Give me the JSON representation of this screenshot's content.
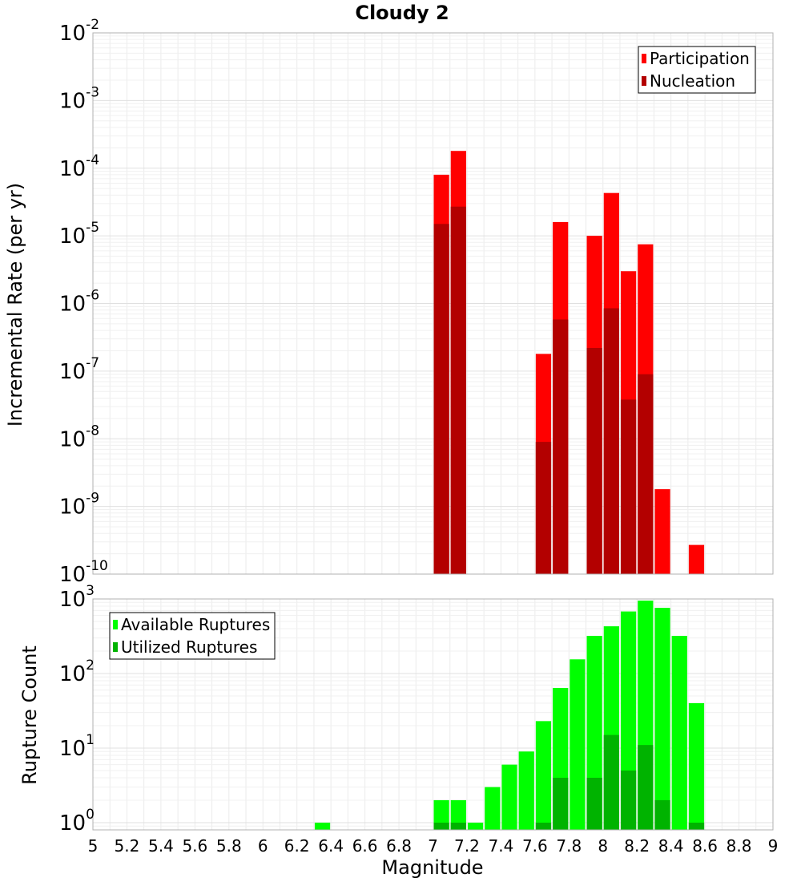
{
  "chart_data": [
    {
      "type": "bar",
      "title": "Cloudy 2",
      "ylabel": "Incremental Rate (per yr)",
      "yscale": "log",
      "ylim": [
        1e-10,
        0.01
      ],
      "xlim": [
        5,
        9
      ],
      "legend": {
        "placement": "top-right"
      },
      "grid": true,
      "series": [
        {
          "name": "Participation",
          "color": "#ff0000",
          "points": [
            {
              "x": 7.05,
              "y": 8e-05
            },
            {
              "x": 7.15,
              "y": 0.00018
            },
            {
              "x": 7.65,
              "y": 1.8e-07
            },
            {
              "x": 7.75,
              "y": 1.6e-05
            },
            {
              "x": 7.95,
              "y": 1e-05
            },
            {
              "x": 8.05,
              "y": 4.3e-05
            },
            {
              "x": 8.15,
              "y": 3e-06
            },
            {
              "x": 8.25,
              "y": 7.5e-06
            },
            {
              "x": 8.35,
              "y": 1.8e-09
            },
            {
              "x": 8.55,
              "y": 2.7e-10
            }
          ]
        },
        {
          "name": "Nucleation",
          "color": "#b30000",
          "points": [
            {
              "x": 7.05,
              "y": 1.5e-05
            },
            {
              "x": 7.15,
              "y": 2.7e-05
            },
            {
              "x": 7.65,
              "y": 9e-09
            },
            {
              "x": 7.75,
              "y": 5.8e-07
            },
            {
              "x": 7.95,
              "y": 2.2e-07
            },
            {
              "x": 8.05,
              "y": 8.5e-07
            },
            {
              "x": 8.15,
              "y": 3.8e-08
            },
            {
              "x": 8.25,
              "y": 9e-08
            }
          ]
        }
      ]
    },
    {
      "type": "bar",
      "xlabel": "Magnitude",
      "ylabel": "Rupture Count",
      "yscale": "log",
      "ylim": [
        0.8,
        1000
      ],
      "xlim": [
        5,
        9
      ],
      "xticks": [
        "5",
        "5.2",
        "5.4",
        "5.6",
        "5.8",
        "6",
        "6.2",
        "6.4",
        "6.6",
        "6.8",
        "7",
        "7.2",
        "7.4",
        "7.6",
        "7.8",
        "8",
        "8.2",
        "8.4",
        "8.6",
        "8.8",
        "9"
      ],
      "legend": {
        "placement": "top-left"
      },
      "grid": true,
      "series": [
        {
          "name": "Available Ruptures",
          "color": "#00ff00",
          "points": [
            {
              "x": 6.35,
              "y": 1
            },
            {
              "x": 7.05,
              "y": 2
            },
            {
              "x": 7.15,
              "y": 2
            },
            {
              "x": 7.25,
              "y": 1
            },
            {
              "x": 7.35,
              "y": 3
            },
            {
              "x": 7.45,
              "y": 6
            },
            {
              "x": 7.55,
              "y": 9
            },
            {
              "x": 7.65,
              "y": 23
            },
            {
              "x": 7.75,
              "y": 64
            },
            {
              "x": 7.85,
              "y": 155
            },
            {
              "x": 7.95,
              "y": 320
            },
            {
              "x": 8.05,
              "y": 430
            },
            {
              "x": 8.15,
              "y": 680
            },
            {
              "x": 8.25,
              "y": 950
            },
            {
              "x": 8.35,
              "y": 760
            },
            {
              "x": 8.45,
              "y": 320
            },
            {
              "x": 8.55,
              "y": 40
            }
          ]
        },
        {
          "name": "Utilized Ruptures",
          "color": "#00b300",
          "points": [
            {
              "x": 7.05,
              "y": 1
            },
            {
              "x": 7.15,
              "y": 1
            },
            {
              "x": 7.65,
              "y": 1
            },
            {
              "x": 7.75,
              "y": 4
            },
            {
              "x": 7.95,
              "y": 4
            },
            {
              "x": 8.05,
              "y": 15
            },
            {
              "x": 8.15,
              "y": 5
            },
            {
              "x": 8.25,
              "y": 11
            },
            {
              "x": 8.35,
              "y": 2
            },
            {
              "x": 8.55,
              "y": 1
            }
          ]
        }
      ]
    }
  ]
}
